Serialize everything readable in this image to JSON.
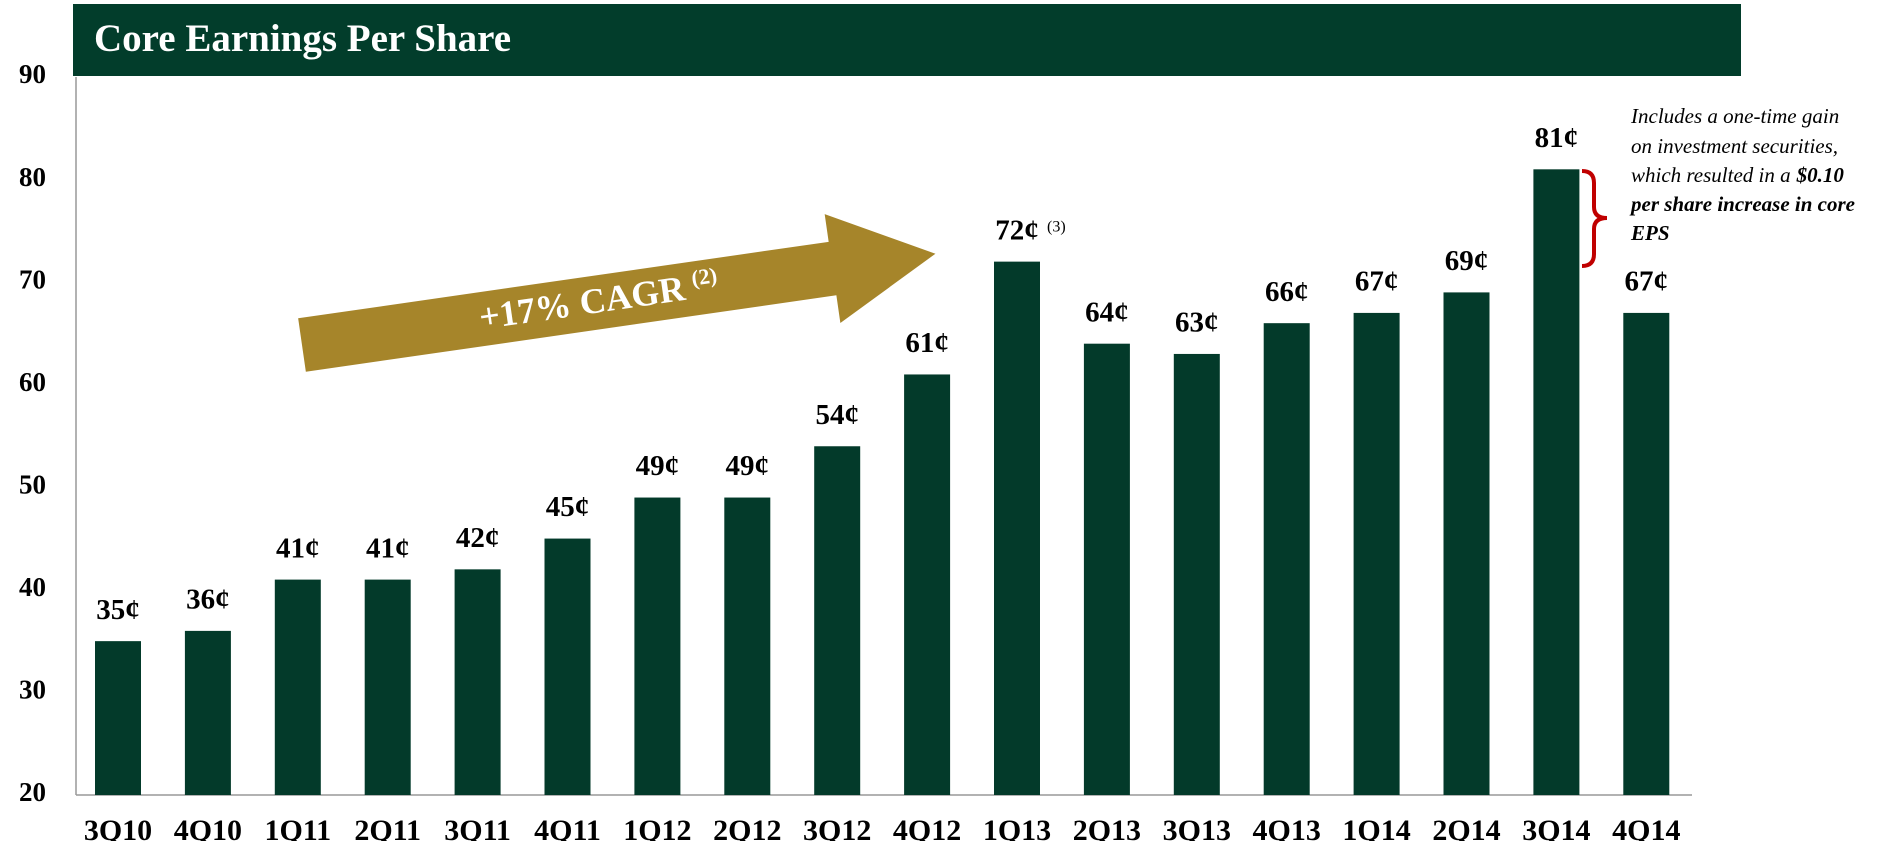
{
  "chart_data": {
    "type": "bar",
    "title": "Core Earnings Per Share",
    "categories": [
      "3Q10",
      "4Q10",
      "1Q11",
      "2Q11",
      "3Q11",
      "4Q11",
      "1Q12",
      "2Q12",
      "3Q12",
      "4Q12",
      "1Q13",
      "2Q13",
      "3Q13",
      "4Q13",
      "1Q14",
      "2Q14",
      "3Q14",
      "4Q14"
    ],
    "values": [
      35,
      36,
      41,
      41,
      42,
      45,
      49,
      49,
      54,
      61,
      72,
      64,
      63,
      66,
      67,
      69,
      81,
      67
    ],
    "value_labels": [
      "35¢",
      "36¢",
      "41¢",
      "41¢",
      "42¢",
      "45¢",
      "49¢",
      "49¢",
      "54¢",
      "61¢",
      "72¢",
      "64¢",
      "63¢",
      "66¢",
      "67¢",
      "69¢",
      "81¢",
      "67¢"
    ],
    "color": "#033a2a",
    "ylim": [
      20,
      90
    ],
    "yticks": [
      20,
      30,
      40,
      50,
      60,
      70,
      80,
      90
    ],
    "grid": false,
    "footnote_1Q13": "(3)",
    "arrow_label": "+17% CAGR",
    "arrow_footnote": "(2)",
    "annotation": {
      "normal": [
        "Includes a one-time gain",
        "on investment securities,",
        "which resulted in a"
      ],
      "bold": [
        "$0.10",
        "per share increase in core",
        "EPS"
      ]
    }
  }
}
